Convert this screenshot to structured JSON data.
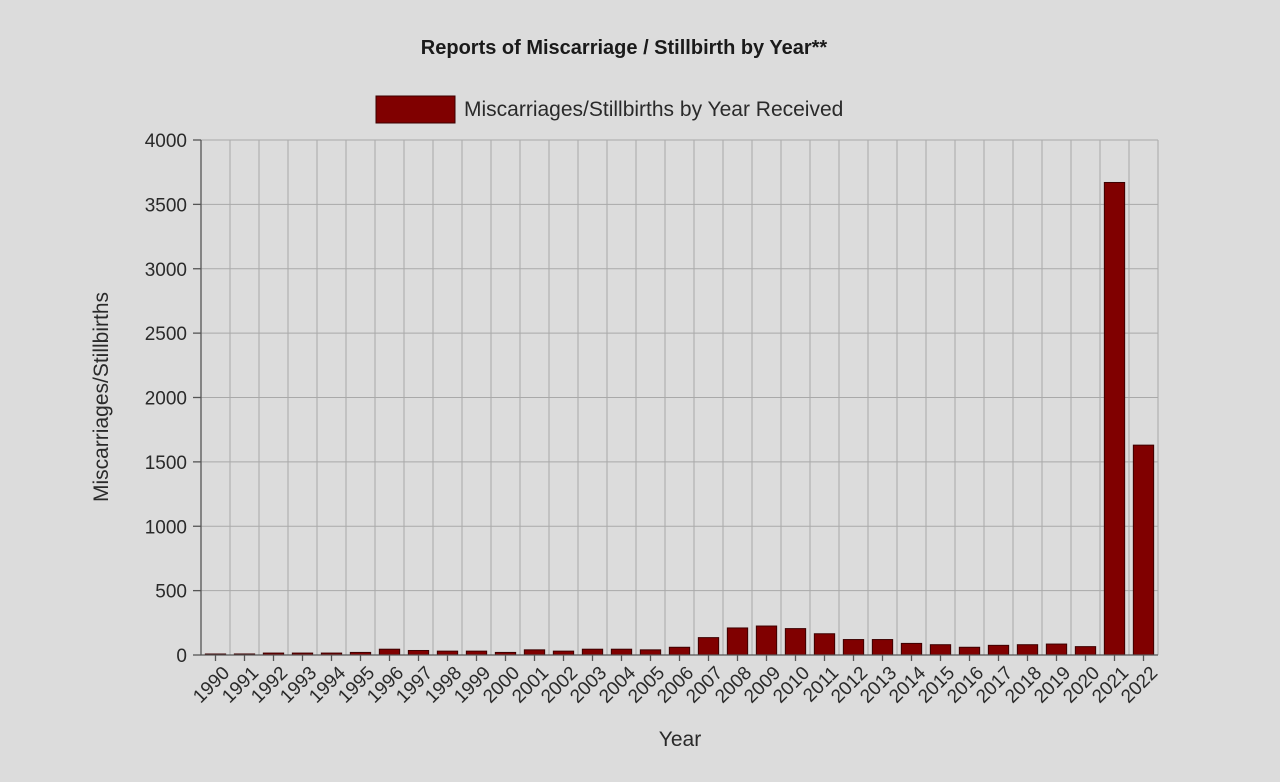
{
  "chart_data": {
    "type": "bar",
    "title": "Reports of Miscarriage / Stillbirth by Year**",
    "xlabel": "Year",
    "ylabel": "Miscarriages/Stillbirths",
    "ylim": [
      0,
      4000
    ],
    "yticks": [
      "0",
      "500",
      "1000",
      "1500",
      "2000",
      "2500",
      "3000",
      "3500",
      "4000"
    ],
    "grid": true,
    "legend_position": "top-center",
    "categories": [
      "1990",
      "1991",
      "1992",
      "1993",
      "1994",
      "1995",
      "1996",
      "1997",
      "1998",
      "1999",
      "2000",
      "2001",
      "2002",
      "2003",
      "2004",
      "2005",
      "2006",
      "2007",
      "2008",
      "2009",
      "2010",
      "2011",
      "2012",
      "2013",
      "2014",
      "2015",
      "2016",
      "2017",
      "2018",
      "2019",
      "2020",
      "2021",
      "2022"
    ],
    "series": [
      {
        "name": "Miscarriages/Stillbirths by Year Received",
        "color": "#800000",
        "values": [
          5,
          8,
          15,
          15,
          15,
          20,
          45,
          35,
          30,
          30,
          20,
          40,
          30,
          45,
          45,
          40,
          60,
          135,
          210,
          225,
          205,
          165,
          120,
          120,
          90,
          80,
          60,
          75,
          80,
          85,
          65,
          3670,
          1630
        ]
      }
    ]
  }
}
